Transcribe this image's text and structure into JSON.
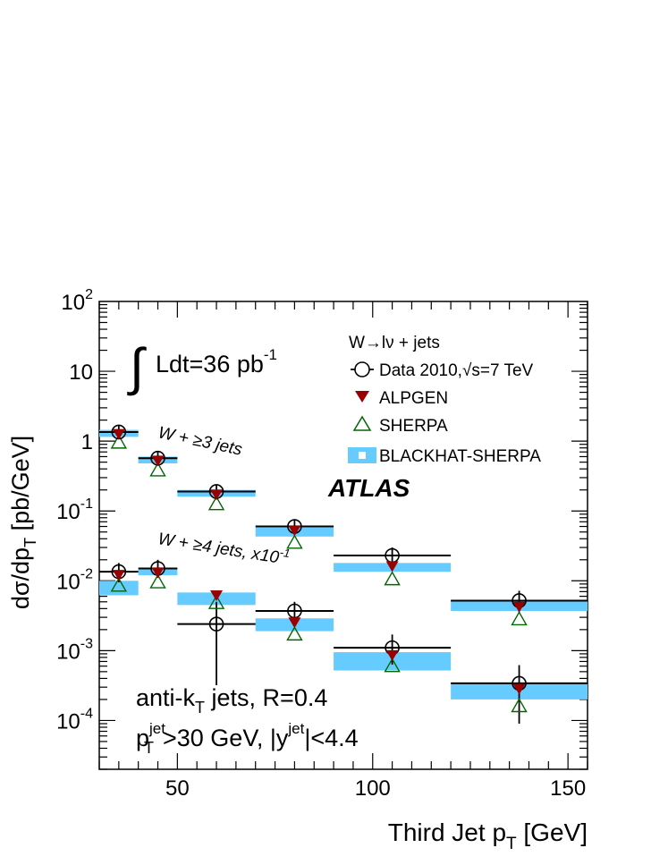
{
  "chart_data": {
    "type": "scatter",
    "ylabel": "dσ/dp",
    "ylabel_sub": "T",
    "ylabel_unit": " [pb/GeV]",
    "xlabel": "Third Jet p",
    "xlabel_sub": "T",
    "xlabel_unit": " [GeV]",
    "xlim": [
      30,
      155
    ],
    "ylim": [
      2e-05,
      100
    ],
    "yscale": "log",
    "x_ticks": [
      50,
      100,
      150
    ],
    "y_ticks": [
      {
        "value": 0.0001,
        "base": "10",
        "exp": "-4"
      },
      {
        "value": 0.001,
        "base": "10",
        "exp": "-3"
      },
      {
        "value": 0.01,
        "base": "10",
        "exp": "-2"
      },
      {
        "value": 0.1,
        "base": "10",
        "exp": "-1"
      },
      {
        "value": 1,
        "base": "1",
        "exp": ""
      },
      {
        "value": 10,
        "base": "10",
        "exp": ""
      },
      {
        "value": 100,
        "base": "10",
        "exp": "2"
      }
    ],
    "lumi": {
      "prefix": "∫",
      "text": "Ldt=36 pb",
      "sup": "-1"
    },
    "legend": {
      "title": "W→lν + jets",
      "data": "Data 2010,",
      "data_sqrt": "√s=7 TeV",
      "alpgen": "ALPGEN",
      "sherpa": "SHERPA",
      "blackhat": "BLACKHAT-SHERPA"
    },
    "experiment": "ATLAS",
    "annotation_3jet": "W + ≥3 jets",
    "annotation_4jet": "W + ≥4 jets, x10",
    "annotation_4jet_sup": "-1",
    "jet_info_1": "anti-k",
    "jet_info_1_sub": "T",
    "jet_info_1_rest": " jets, R=0.4",
    "jet_info_2_p": "p",
    "jet_info_2_sup": "jet",
    "jet_info_2_sub": "T",
    "jet_info_2_mid": ">30 GeV, |y",
    "jet_info_2_sup2": "jet",
    "jet_info_2_end": "|<4.4",
    "colors": {
      "blackhat": "#66ccff",
      "alpgen": "#990000",
      "sherpa": "#006600",
      "data": "#000000"
    },
    "series": [
      {
        "name": "W + ≥3 jets",
        "bins": [
          {
            "x": 35,
            "xlo": 30,
            "xhi": 40,
            "data": 1.35,
            "err_lo": 1.1,
            "err_hi": 1.65,
            "alpgen": 1.25,
            "sherpa": 0.95,
            "bh_lo": 1.15,
            "bh_hi": 1.45
          },
          {
            "x": 45,
            "xlo": 40,
            "xhi": 50,
            "data": 0.57,
            "err_lo": 0.45,
            "err_hi": 0.7,
            "alpgen": 0.52,
            "sherpa": 0.38,
            "bh_lo": 0.48,
            "bh_hi": 0.6
          },
          {
            "x": 60,
            "xlo": 50,
            "xhi": 70,
            "data": 0.19,
            "err_lo": 0.15,
            "err_hi": 0.24,
            "alpgen": 0.17,
            "sherpa": 0.125,
            "bh_lo": 0.16,
            "bh_hi": 0.2
          },
          {
            "x": 80,
            "xlo": 70,
            "xhi": 90,
            "data": 0.06,
            "err_lo": 0.046,
            "err_hi": 0.075,
            "alpgen": 0.052,
            "sherpa": 0.035,
            "bh_lo": 0.043,
            "bh_hi": 0.058
          },
          {
            "x": 105,
            "xlo": 90,
            "xhi": 120,
            "data": 0.023,
            "err_lo": 0.017,
            "err_hi": 0.03,
            "alpgen": 0.016,
            "sherpa": 0.0105,
            "bh_lo": 0.0135,
            "bh_hi": 0.018
          },
          {
            "x": 137.5,
            "xlo": 120,
            "xhi": 155,
            "data": 0.0052,
            "err_lo": 0.0035,
            "err_hi": 0.0072,
            "alpgen": 0.0042,
            "sherpa": 0.0028,
            "bh_lo": 0.0037,
            "bh_hi": 0.0053
          }
        ]
      },
      {
        "name": "W + ≥4 jets, x10⁻¹",
        "bins": [
          {
            "x": 35,
            "xlo": 30,
            "xhi": 40,
            "data": 0.0135,
            "err_lo": 0.0095,
            "err_hi": 0.018,
            "alpgen": 0.012,
            "sherpa": 0.0085,
            "bh_lo": 0.0062,
            "bh_hi": 0.01
          },
          {
            "x": 45,
            "xlo": 40,
            "xhi": 50,
            "data": 0.015,
            "err_lo": 0.011,
            "err_hi": 0.02,
            "alpgen": 0.013,
            "sherpa": 0.0095,
            "bh_lo": 0.012,
            "bh_hi": 0.015
          },
          {
            "x": 60,
            "xlo": 50,
            "xhi": 70,
            "data": 0.0024,
            "err_lo": 0.00032,
            "err_hi": 0.005,
            "alpgen": 0.0061,
            "sherpa": 0.0048,
            "bh_lo": 0.0045,
            "bh_hi": 0.0068
          },
          {
            "x": 80,
            "xlo": 70,
            "xhi": 90,
            "data": 0.0037,
            "err_lo": 0.0025,
            "err_hi": 0.005,
            "alpgen": 0.0025,
            "sherpa": 0.0017,
            "bh_lo": 0.0019,
            "bh_hi": 0.0029
          },
          {
            "x": 105,
            "xlo": 90,
            "xhi": 120,
            "data": 0.0011,
            "err_lo": 0.00063,
            "err_hi": 0.0017,
            "alpgen": 0.00085,
            "sherpa": 0.0006,
            "bh_lo": 0.00052,
            "bh_hi": 0.00095
          },
          {
            "x": 137.5,
            "xlo": 120,
            "xhi": 155,
            "data": 0.00034,
            "err_lo": 9e-05,
            "err_hi": 0.00062,
            "alpgen": 0.00028,
            "sherpa": 0.00016,
            "bh_lo": 0.0002,
            "bh_hi": 0.00035
          }
        ]
      }
    ]
  }
}
